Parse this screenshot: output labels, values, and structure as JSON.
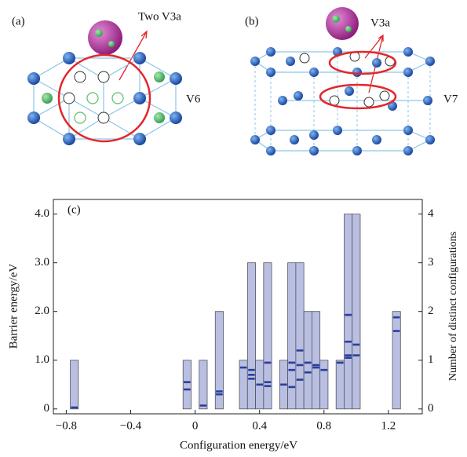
{
  "panel_a": {
    "label": "(a)",
    "cluster_label": "Two V3a",
    "structure_label": "V6"
  },
  "panel_b": {
    "label": "(b)",
    "cluster_label": "V3a",
    "structure_label": "V7"
  },
  "chart_data": {
    "type": "bar",
    "panel_label": "(c)",
    "x_label": "Configuration energy/eV",
    "y_label": "Barrier energy/eV",
    "y2_label": "Number of distinct configurations",
    "xlim": [
      -0.88,
      1.41
    ],
    "ylim": [
      -0.1,
      4.3
    ],
    "y2lim": [
      -0.1,
      4.3
    ],
    "xticks": [
      {
        "value": -0.8,
        "label": "−0.8"
      },
      {
        "value": -0.4,
        "label": "−0.4"
      },
      0,
      0.4,
      0.8,
      1.2
    ],
    "yticks": [
      0,
      {
        "value": 1,
        "label": "1.0"
      },
      {
        "value": 2,
        "label": "2.0"
      },
      {
        "value": 3,
        "label": "3.0"
      },
      {
        "value": 4,
        "label": "4.0"
      }
    ],
    "y2ticks": [
      0,
      1,
      2,
      3,
      4
    ],
    "series": [
      {
        "type": "bar",
        "axis": "y2",
        "color": "#b9bfe2",
        "x": [
          -0.75,
          -0.05,
          0.05,
          0.15,
          0.3,
          0.35,
          0.4,
          0.45,
          0.55,
          0.6,
          0.65,
          0.7,
          0.75,
          0.8,
          0.9,
          0.95,
          1.0,
          1.25
        ],
        "values": [
          1,
          1,
          1,
          2,
          1,
          3,
          1,
          3,
          1,
          3,
          3,
          2,
          2,
          1,
          1,
          4,
          4,
          2
        ]
      },
      {
        "type": "scatter",
        "color": "#2a3e9e",
        "x": [
          -0.75,
          -0.05,
          -0.05,
          0.05,
          0.15,
          0.15,
          0.3,
          0.35,
          0.35,
          0.35,
          0.4,
          0.45,
          0.45,
          0.45,
          0.55,
          0.6,
          0.6,
          0.6,
          0.65,
          0.65,
          0.65,
          0.7,
          0.7,
          0.75,
          0.75,
          0.8,
          0.9,
          0.95,
          0.95,
          0.95,
          0.95,
          1.0,
          1.0,
          1.25,
          1.25
        ],
        "values": [
          0.03,
          0.55,
          0.4,
          0.07,
          0.3,
          0.36,
          0.85,
          0.8,
          0.7,
          0.62,
          0.5,
          0.95,
          0.55,
          0.47,
          0.5,
          0.95,
          0.8,
          0.45,
          1.2,
          0.9,
          0.6,
          0.95,
          0.75,
          0.9,
          0.85,
          0.8,
          0.95,
          1.93,
          1.38,
          1.1,
          1.05,
          1.32,
          1.1,
          1.88,
          1.6
        ]
      }
    ]
  }
}
